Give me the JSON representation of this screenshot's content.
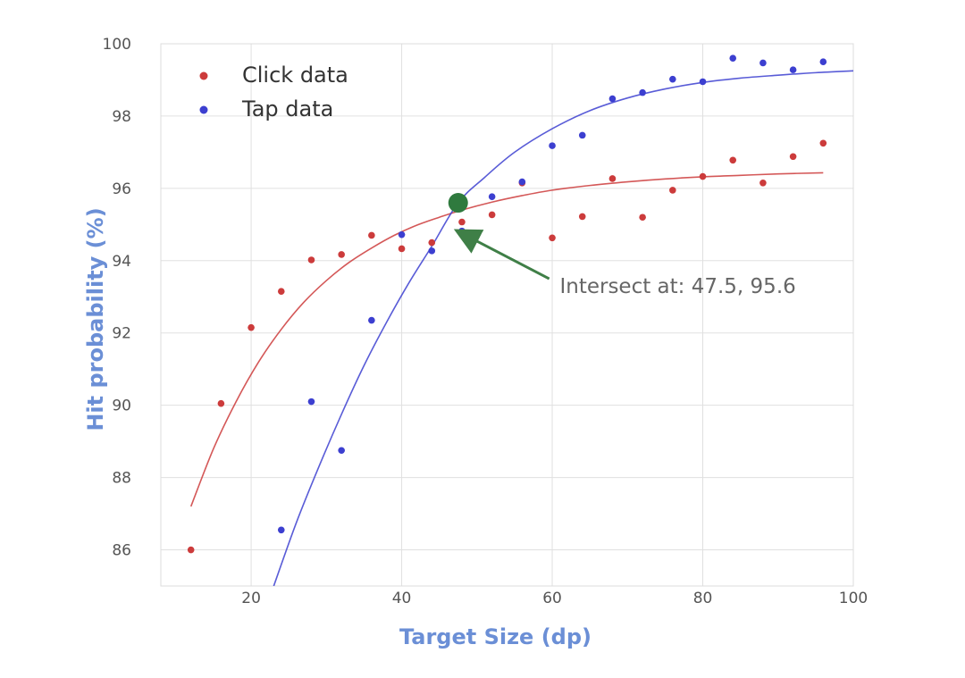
{
  "chart_data": {
    "type": "scatter",
    "xlabel": "Target Size (dp)",
    "ylabel": "Hit probability (%)",
    "xlim": [
      8,
      100
    ],
    "ylim": [
      85,
      100
    ],
    "x_ticks": [
      20,
      40,
      60,
      80,
      100
    ],
    "y_ticks": [
      86,
      88,
      90,
      92,
      94,
      96,
      98,
      100
    ],
    "grid": true,
    "legend_position": "top-left",
    "series": [
      {
        "name": "Click data",
        "color": "#cc3b3b",
        "x": [
          12,
          16,
          20,
          24,
          28,
          32,
          36,
          40,
          44,
          48,
          52,
          56,
          60,
          64,
          68,
          72,
          76,
          80,
          84,
          88,
          92,
          96
        ],
        "y": [
          86.0,
          90.05,
          92.15,
          93.15,
          94.02,
          94.17,
          94.7,
          94.33,
          94.5,
          95.07,
          95.27,
          96.15,
          94.63,
          95.22,
          96.27,
          95.2,
          95.95,
          96.33,
          96.78,
          96.15,
          96.88,
          97.25
        ],
        "fit_curve": {
          "x": [
            12,
            15,
            18,
            21,
            24,
            27,
            30,
            33,
            36,
            39,
            42,
            45,
            48,
            52,
            56,
            60,
            65,
            70,
            75,
            80,
            85,
            90,
            96
          ],
          "y": [
            87.2,
            88.8,
            90.1,
            91.2,
            92.1,
            92.85,
            93.45,
            93.95,
            94.35,
            94.7,
            94.98,
            95.2,
            95.4,
            95.62,
            95.8,
            95.95,
            96.08,
            96.18,
            96.26,
            96.32,
            96.36,
            96.4,
            96.43
          ]
        }
      },
      {
        "name": "Tap data",
        "color": "#3c3fd0",
        "x": [
          24,
          28,
          32,
          36,
          40,
          44,
          48,
          52,
          56,
          60,
          64,
          68,
          72,
          76,
          80,
          84,
          88,
          92,
          96
        ],
        "y": [
          86.55,
          90.1,
          88.75,
          92.35,
          94.72,
          94.27,
          94.82,
          95.77,
          96.18,
          97.18,
          97.47,
          98.48,
          98.65,
          99.02,
          98.95,
          99.6,
          99.47,
          99.28,
          99.5
        ],
        "fit_curve": {
          "x": [
            23,
            26,
            29,
            32,
            35,
            38,
            41,
            44,
            47.5,
            51,
            55,
            60,
            65,
            70,
            75,
            80,
            85,
            90,
            95,
            100
          ],
          "y": [
            85.0,
            86.75,
            88.3,
            89.75,
            91.1,
            92.3,
            93.4,
            94.4,
            95.6,
            96.3,
            97.0,
            97.65,
            98.15,
            98.5,
            98.75,
            98.93,
            99.05,
            99.13,
            99.2,
            99.25
          ]
        }
      }
    ],
    "intersection": {
      "x": 47.5,
      "y": 95.6,
      "color": "#2f7a3e"
    },
    "annotations": [
      {
        "text": "Intersect at: 47.5, 95.6",
        "x": 48.5,
        "y": 94.7,
        "text_x": 61,
        "text_y": 93.2,
        "color": "#3f7f47"
      }
    ]
  }
}
